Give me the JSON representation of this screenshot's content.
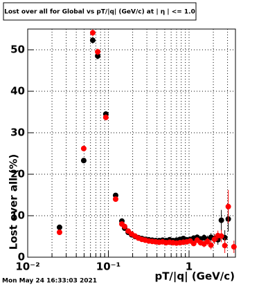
{
  "chart_data": {
    "type": "scatter",
    "title": "Lost over all for Global vs pT/|q| (GeV/c) at | η | <= 1.0",
    "x_label": "pT/|q| (GeV/c)",
    "y_label": "Lost over all (%)",
    "timestamp": "Mon May 24 16:33:03 2021",
    "xscale": "log",
    "grid": true,
    "xlim": [
      0.01,
      3.76
    ],
    "ylim": [
      0,
      55
    ],
    "xticks": [
      {
        "value": 0.01,
        "label": "10⁻²"
      },
      {
        "value": 0.1,
        "label": "10⁻¹"
      },
      1
    ],
    "xminorticks": [
      0.02,
      0.03,
      0.04,
      0.05,
      0.06,
      0.07,
      0.08,
      0.09,
      0.2,
      0.3,
      0.4,
      0.5,
      0.6,
      0.7,
      0.8,
      0.9,
      2,
      3
    ],
    "yticks": [
      0,
      10,
      20,
      30,
      40,
      50
    ],
    "series": [
      {
        "name": "Global (black)",
        "color": "#000000",
        "x": [
          0.0248,
          0.0495,
          0.064,
          0.0737,
          0.093,
          0.123,
          0.147,
          0.159,
          0.176,
          0.194,
          0.214,
          0.236,
          0.26,
          0.287,
          0.317,
          0.35,
          0.386,
          0.426,
          0.47,
          0.519,
          0.573,
          0.632,
          0.698,
          0.77,
          0.85,
          0.938,
          1.035,
          1.142,
          1.261,
          1.391,
          1.536,
          1.695,
          1.871,
          2.065,
          2.279,
          2.515,
          2.776,
          3.063
        ],
        "values": [
          7.2,
          23.3,
          52.3,
          48.5,
          34.5,
          14.9,
          8.7,
          7.0,
          6.0,
          5.4,
          5.0,
          4.7,
          4.5,
          4.3,
          4.2,
          4.1,
          4.0,
          4.0,
          4.1,
          4.0,
          4.2,
          4.0,
          4.1,
          4.3,
          4.5,
          4.2,
          4.3,
          4.6,
          4.8,
          4.4,
          4.7,
          4.3,
          4.8,
          4.5,
          4.2,
          8.9,
          4.7,
          9.2
        ],
        "errors": [
          0.5,
          0.6,
          0.8,
          0.8,
          0.7,
          0.5,
          0.4,
          0.3,
          0.3,
          0.3,
          0.3,
          0.3,
          0.3,
          0.3,
          0.3,
          0.3,
          0.3,
          0.3,
          0.3,
          0.4,
          0.4,
          0.4,
          0.4,
          0.5,
          0.5,
          0.5,
          0.6,
          0.6,
          0.7,
          0.7,
          0.8,
          0.9,
          1.0,
          1.1,
          1.2,
          2.5,
          1.8,
          3.0
        ]
      },
      {
        "name": "Global (red)",
        "color": "#ff0000",
        "x": [
          0.0248,
          0.0495,
          0.064,
          0.0737,
          0.093,
          0.123,
          0.147,
          0.159,
          0.176,
          0.194,
          0.214,
          0.236,
          0.26,
          0.287,
          0.317,
          0.35,
          0.386,
          0.426,
          0.47,
          0.519,
          0.573,
          0.632,
          0.698,
          0.77,
          0.85,
          0.938,
          1.035,
          1.142,
          1.261,
          1.391,
          1.536,
          1.695,
          1.871,
          2.065,
          2.279,
          2.515,
          2.776,
          3.063,
          3.6
        ],
        "values": [
          6.0,
          26.2,
          54.1,
          49.5,
          33.7,
          14.0,
          8.0,
          7.4,
          6.3,
          5.6,
          5.1,
          4.6,
          4.3,
          4.1,
          3.9,
          3.8,
          3.7,
          3.6,
          3.7,
          3.5,
          3.6,
          3.5,
          3.4,
          3.5,
          3.6,
          3.7,
          3.9,
          3.3,
          4.1,
          3.5,
          3.2,
          3.8,
          2.9,
          4.3,
          5.2,
          5.1,
          2.8,
          12.2,
          2.5
        ],
        "errors": [
          0.5,
          0.6,
          0.8,
          0.8,
          0.7,
          0.5,
          0.4,
          0.3,
          0.3,
          0.3,
          0.3,
          0.3,
          0.3,
          0.3,
          0.3,
          0.3,
          0.3,
          0.3,
          0.3,
          0.4,
          0.4,
          0.4,
          0.4,
          0.5,
          0.5,
          0.5,
          0.6,
          0.6,
          0.7,
          0.7,
          0.8,
          0.9,
          1.0,
          1.1,
          1.2,
          1.5,
          1.8,
          4.0,
          1.5
        ]
      }
    ]
  }
}
